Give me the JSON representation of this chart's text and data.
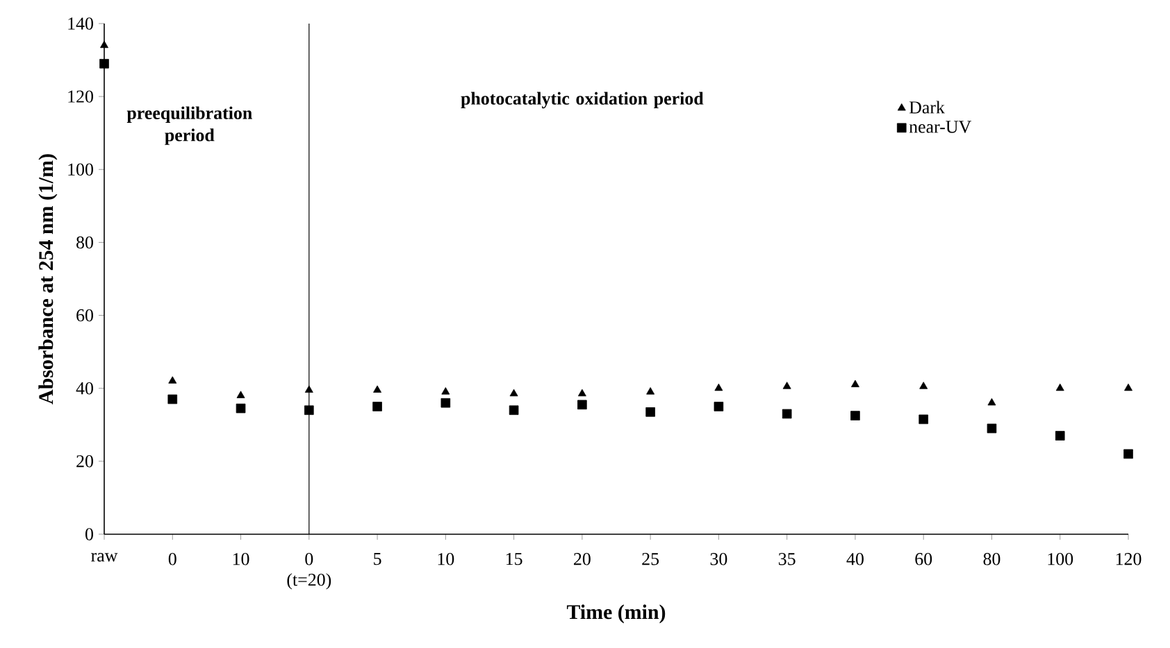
{
  "chart_data": {
    "type": "scatter",
    "xlabel": "Time (min)",
    "ylabel": "Absorbance at 254 nm (1/m)",
    "categories": [
      "raw",
      "0",
      "10",
      "0 (t=20)",
      "5",
      "10",
      "15",
      "20",
      "25",
      "30",
      "35",
      "40",
      "60",
      "80",
      "100",
      "120"
    ],
    "series": [
      {
        "name": "Dark",
        "color": "#000000",
        "marker": "triangle",
        "values": [
          134,
          42,
          38,
          39.5,
          39.5,
          39,
          38.5,
          38.5,
          39,
          40,
          40.5,
          41,
          40.5,
          36,
          40,
          40
        ]
      },
      {
        "name": "near-UV",
        "color": "#000000",
        "marker": "square",
        "values": [
          129,
          37,
          34.5,
          34,
          35,
          36,
          34,
          35.5,
          33.5,
          35,
          33,
          32.5,
          31.5,
          29,
          27,
          22
        ]
      }
    ],
    "ylim": [
      0,
      140
    ],
    "yticks": [
      0,
      20,
      40,
      60,
      80,
      100,
      120,
      140
    ],
    "ref_lines": [
      {
        "axis": "x",
        "value": "0 (t=20)",
        "color": "#000000"
      }
    ],
    "annotations": [
      "preequilibration period",
      "photocatalytic oxidation period"
    ],
    "legend": "top right",
    "grid": false
  }
}
